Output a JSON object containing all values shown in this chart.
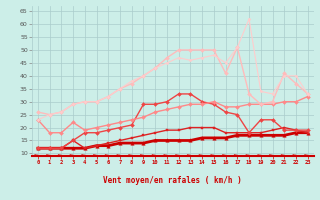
{
  "bg_color": "#cceee8",
  "grid_color": "#aacccc",
  "xlabel": "Vent moyen/en rafales ( km/h )",
  "ylim": [
    9,
    67
  ],
  "yticks": [
    10,
    15,
    20,
    25,
    30,
    35,
    40,
    45,
    50,
    55,
    60,
    65
  ],
  "x_ticks": [
    0,
    1,
    2,
    3,
    4,
    5,
    6,
    7,
    8,
    9,
    10,
    11,
    12,
    13,
    14,
    15,
    16,
    17,
    18,
    19,
    20,
    21,
    22,
    23
  ],
  "lines": [
    {
      "color": "#cc0000",
      "linewidth": 2.0,
      "marker": "^",
      "markersize": 2.5,
      "y": [
        12,
        12,
        12,
        12,
        12,
        13,
        13,
        14,
        14,
        14,
        15,
        15,
        15,
        15,
        16,
        16,
        16,
        17,
        17,
        17,
        17,
        17,
        18,
        18
      ]
    },
    {
      "color": "#dd2222",
      "linewidth": 1.0,
      "marker": "s",
      "markersize": 2.0,
      "y": [
        12,
        12,
        12,
        15,
        12,
        13,
        14,
        15,
        16,
        17,
        18,
        19,
        19,
        20,
        20,
        20,
        18,
        18,
        18,
        18,
        19,
        20,
        19,
        18
      ]
    },
    {
      "color": "#ee4444",
      "linewidth": 1.0,
      "marker": "D",
      "markersize": 2.0,
      "y": [
        12,
        12,
        12,
        15,
        18,
        18,
        19,
        20,
        21,
        29,
        29,
        30,
        33,
        33,
        30,
        29,
        26,
        25,
        18,
        23,
        23,
        19,
        19,
        19
      ]
    },
    {
      "color": "#ff8888",
      "linewidth": 1.0,
      "marker": "D",
      "markersize": 2.0,
      "y": [
        23,
        18,
        18,
        22,
        19,
        20,
        21,
        22,
        23,
        24,
        26,
        27,
        28,
        29,
        29,
        30,
        28,
        28,
        29,
        29,
        29,
        30,
        30,
        32
      ]
    },
    {
      "color": "#ffbbbb",
      "linewidth": 1.0,
      "marker": "D",
      "markersize": 2.0,
      "y": [
        26,
        25,
        26,
        29,
        30,
        30,
        32,
        35,
        37,
        40,
        43,
        47,
        50,
        50,
        50,
        50,
        41,
        51,
        33,
        29,
        30,
        41,
        37,
        33
      ]
    },
    {
      "color": "#ffcccc",
      "linewidth": 0.8,
      "marker": "D",
      "markersize": 1.5,
      "y": [
        23,
        25,
        26,
        29,
        30,
        30,
        32,
        35,
        38,
        40,
        43,
        45,
        47,
        46,
        47,
        48,
        45,
        51,
        62,
        34,
        33,
        40,
        40,
        33
      ]
    }
  ]
}
